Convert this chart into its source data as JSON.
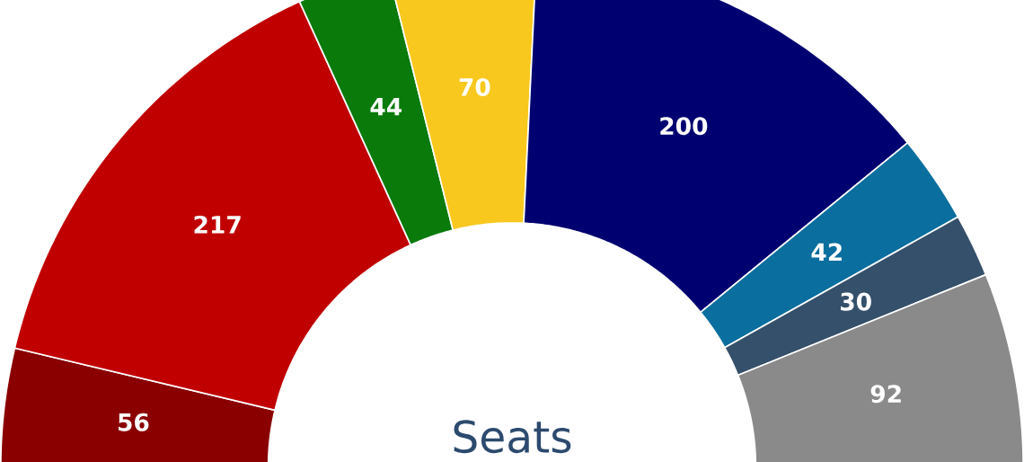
{
  "chart_data": {
    "type": "donut",
    "title": "Seats",
    "categories": [
      null,
      null,
      null,
      null,
      null,
      null,
      null,
      null
    ],
    "values": [
      56,
      217,
      44,
      70,
      200,
      42,
      30,
      92
    ],
    "colors": [
      "#8a0000",
      "#c00000",
      "#0a7a0a",
      "#f8c81e",
      "#000070",
      "#0a6e9e",
      "#35506a",
      "#8a8a8a"
    ],
    "data_labels": true
  }
}
